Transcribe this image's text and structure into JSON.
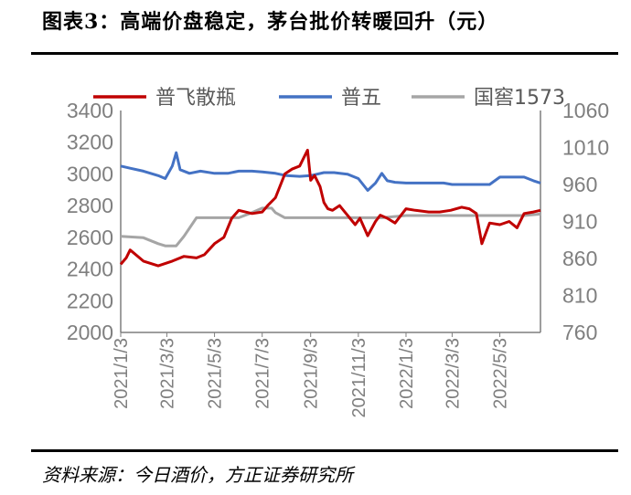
{
  "header": {
    "title": "图表3：高端价盘稳定，茅台批价转暖回升（元）"
  },
  "footer": {
    "source": "资料来源：今日酒价，方正证券研究所"
  },
  "colors": {
    "feitian": "#c00000",
    "wuliangye": "#4472c4",
    "guojiao": "#a5a5a5",
    "axis": "#7f7f7f",
    "rule": "#000000"
  },
  "chart_data": {
    "type": "line",
    "title": "",
    "legend_position": "top",
    "grid": false,
    "x_ticks": [
      "2021/1/3",
      "2021/3/3",
      "2021/5/3",
      "2021/7/3",
      "2021/9/3",
      "2021/11/3",
      "2022/1/3",
      "2022/3/3",
      "2022/5/3"
    ],
    "x_range": [
      "2021/1/3",
      "2022/6/24"
    ],
    "y_left": {
      "min": 2000,
      "max": 3400,
      "ticks": [
        "3400",
        "3200",
        "3000",
        "2800",
        "2600",
        "2400",
        "2200",
        "2000"
      ]
    },
    "y_right": {
      "min": 760,
      "max": 1060,
      "ticks": [
        "1060",
        "1010",
        "960",
        "910",
        "860",
        "810",
        "760"
      ]
    },
    "series": [
      {
        "name": "普飞散瓶",
        "axis": "left",
        "x": [
          "2021/1/3",
          "2021/1/10",
          "2021/1/15",
          "2021/2/1",
          "2021/2/20",
          "2021/3/10",
          "2021/3/25",
          "2021/4/10",
          "2021/4/20",
          "2021/5/3",
          "2021/5/15",
          "2021/5/25",
          "2021/6/3",
          "2021/6/20",
          "2021/7/3",
          "2021/7/10",
          "2021/7/20",
          "2021/8/1",
          "2021/8/10",
          "2021/8/20",
          "2021/8/25",
          "2021/8/30",
          "2021/9/3",
          "2021/9/8",
          "2021/9/15",
          "2021/9/20",
          "2021/9/25",
          "2021/10/1",
          "2021/10/10",
          "2021/10/20",
          "2021/10/30",
          "2021/11/5",
          "2021/11/15",
          "2021/11/25",
          "2021/12/1",
          "2021/12/10",
          "2021/12/20",
          "2022/1/3",
          "2022/1/15",
          "2022/2/1",
          "2022/2/15",
          "2022/3/1",
          "2022/3/15",
          "2022/3/25",
          "2022/4/3",
          "2022/4/10",
          "2022/4/20",
          "2022/5/3",
          "2022/5/15",
          "2022/5/25",
          "2022/6/3",
          "2022/6/15",
          "2022/6/24"
        ],
        "values": [
          2430,
          2470,
          2520,
          2450,
          2420,
          2450,
          2480,
          2470,
          2490,
          2560,
          2600,
          2720,
          2770,
          2750,
          2760,
          2800,
          2850,
          3000,
          3030,
          3050,
          3100,
          3150,
          2960,
          2990,
          2920,
          2820,
          2780,
          2770,
          2800,
          2740,
          2680,
          2720,
          2610,
          2700,
          2740,
          2720,
          2690,
          2780,
          2770,
          2760,
          2760,
          2770,
          2790,
          2780,
          2750,
          2560,
          2690,
          2680,
          2700,
          2660,
          2750,
          2760,
          2770
        ]
      },
      {
        "name": "普五",
        "axis": "right",
        "x": [
          "2021/1/3",
          "2021/1/15",
          "2021/2/1",
          "2021/2/20",
          "2021/3/1",
          "2021/3/10",
          "2021/3/15",
          "2021/3/20",
          "2021/4/1",
          "2021/4/15",
          "2021/5/3",
          "2021/5/20",
          "2021/6/3",
          "2021/6/20",
          "2021/7/3",
          "2021/7/20",
          "2021/8/3",
          "2021/8/20",
          "2021/9/3",
          "2021/9/20",
          "2021/10/3",
          "2021/10/20",
          "2021/11/3",
          "2021/11/15",
          "2021/11/25",
          "2021/12/3",
          "2021/12/10",
          "2021/12/20",
          "2022/1/3",
          "2022/1/20",
          "2022/2/3",
          "2022/2/20",
          "2022/3/3",
          "2022/3/20",
          "2022/4/3",
          "2022/4/20",
          "2022/5/3",
          "2022/5/20",
          "2022/6/3",
          "2022/6/15",
          "2022/6/24"
        ],
        "values": [
          985,
          982,
          978,
          972,
          968,
          985,
          1003,
          980,
          975,
          978,
          975,
          975,
          978,
          978,
          977,
          975,
          972,
          971,
          972,
          976,
          976,
          974,
          968,
          952,
          962,
          975,
          965,
          963,
          962,
          962,
          962,
          962,
          960,
          960,
          960,
          960,
          970,
          970,
          970,
          965,
          962
        ]
      },
      {
        "name": "国窖1573",
        "axis": "right",
        "x": [
          "2021/1/3",
          "2021/2/1",
          "2021/2/20",
          "2021/3/1",
          "2021/3/15",
          "2021/3/25",
          "2021/4/10",
          "2021/5/3",
          "2021/6/3",
          "2021/6/20",
          "2021/7/3",
          "2021/7/15",
          "2021/7/20",
          "2021/8/1",
          "2021/8/20",
          "2021/9/3",
          "2021/10/3",
          "2021/11/3",
          "2021/12/3",
          "2022/1/3",
          "2022/2/3",
          "2022/3/3",
          "2022/4/3",
          "2022/5/3",
          "2022/6/3",
          "2022/6/24"
        ],
        "values": [
          890,
          888,
          880,
          877,
          877,
          890,
          915,
          915,
          915,
          922,
          928,
          928,
          922,
          915,
          915,
          915,
          915,
          915,
          915,
          918,
          918,
          918,
          918,
          918,
          918,
          920
        ]
      }
    ]
  }
}
